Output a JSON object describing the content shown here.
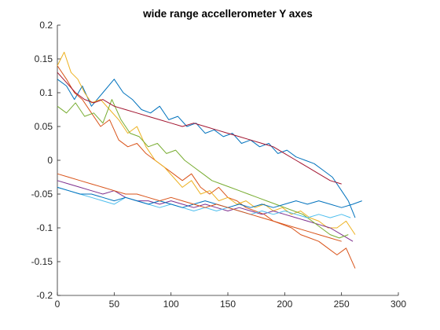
{
  "chart_data": {
    "type": "line",
    "title": "wide range accellerometer Y axes",
    "xlabel": "",
    "ylabel": "",
    "xlim": [
      0,
      300
    ],
    "ylim": [
      -0.2,
      0.2
    ],
    "xticks": [
      0,
      50,
      100,
      150,
      200,
      250,
      300
    ],
    "yticks": [
      -0.2,
      -0.15,
      -0.1,
      -0.05,
      0,
      0.05,
      0.1,
      0.15,
      0.2
    ],
    "grid": false,
    "legend": "none",
    "series": [
      {
        "color": "#0072BD",
        "points": [
          [
            0,
            0.12
          ],
          [
            8,
            0.11
          ],
          [
            15,
            0.09
          ],
          [
            22,
            0.11
          ],
          [
            30,
            0.08
          ],
          [
            40,
            0.1
          ],
          [
            50,
            0.12
          ],
          [
            58,
            0.1
          ],
          [
            66,
            0.09
          ],
          [
            74,
            0.075
          ],
          [
            82,
            0.07
          ],
          [
            90,
            0.08
          ],
          [
            98,
            0.06
          ],
          [
            106,
            0.065
          ],
          [
            114,
            0.05
          ],
          [
            122,
            0.055
          ],
          [
            130,
            0.04
          ],
          [
            138,
            0.045
          ],
          [
            146,
            0.035
          ],
          [
            154,
            0.04
          ],
          [
            162,
            0.025
          ],
          [
            170,
            0.03
          ],
          [
            178,
            0.02
          ],
          [
            186,
            0.025
          ],
          [
            194,
            0.01
          ],
          [
            202,
            0.015
          ],
          [
            210,
            0.005
          ],
          [
            218,
            0.0
          ],
          [
            226,
            -0.005
          ],
          [
            234,
            -0.015
          ],
          [
            242,
            -0.025
          ],
          [
            250,
            -0.045
          ],
          [
            256,
            -0.06
          ],
          [
            262,
            -0.085
          ]
        ]
      },
      {
        "color": "#D95319",
        "points": [
          [
            0,
            0.14
          ],
          [
            8,
            0.12
          ],
          [
            15,
            0.1
          ],
          [
            22,
            0.09
          ],
          [
            30,
            0.07
          ],
          [
            38,
            0.05
          ],
          [
            46,
            0.06
          ],
          [
            54,
            0.03
          ],
          [
            62,
            0.02
          ],
          [
            70,
            0.025
          ],
          [
            78,
            0.01
          ],
          [
            86,
            0.0
          ],
          [
            94,
            -0.01
          ],
          [
            102,
            -0.02
          ],
          [
            110,
            -0.03
          ],
          [
            118,
            -0.02
          ],
          [
            126,
            -0.04
          ],
          [
            134,
            -0.05
          ],
          [
            142,
            -0.04
          ],
          [
            150,
            -0.055
          ],
          [
            158,
            -0.06
          ],
          [
            166,
            -0.07
          ],
          [
            174,
            -0.075
          ],
          [
            182,
            -0.08
          ],
          [
            190,
            -0.09
          ],
          [
            198,
            -0.095
          ],
          [
            206,
            -0.1
          ],
          [
            214,
            -0.11
          ],
          [
            222,
            -0.115
          ],
          [
            230,
            -0.12
          ],
          [
            238,
            -0.13
          ],
          [
            246,
            -0.14
          ],
          [
            254,
            -0.13
          ],
          [
            262,
            -0.16
          ]
        ]
      },
      {
        "color": "#EDB120",
        "points": [
          [
            0,
            0.14
          ],
          [
            6,
            0.16
          ],
          [
            12,
            0.13
          ],
          [
            18,
            0.12
          ],
          [
            24,
            0.1
          ],
          [
            30,
            0.085
          ],
          [
            38,
            0.09
          ],
          [
            46,
            0.075
          ],
          [
            54,
            0.06
          ],
          [
            62,
            0.04
          ],
          [
            70,
            0.05
          ],
          [
            78,
            0.02
          ],
          [
            86,
            0.0
          ],
          [
            94,
            -0.01
          ],
          [
            102,
            -0.025
          ],
          [
            110,
            -0.04
          ],
          [
            118,
            -0.03
          ],
          [
            126,
            -0.05
          ],
          [
            134,
            -0.045
          ],
          [
            142,
            -0.06
          ],
          [
            150,
            -0.055
          ],
          [
            158,
            -0.065
          ],
          [
            166,
            -0.06
          ],
          [
            174,
            -0.07
          ],
          [
            182,
            -0.065
          ],
          [
            190,
            -0.075
          ],
          [
            198,
            -0.07
          ],
          [
            206,
            -0.08
          ],
          [
            214,
            -0.075
          ],
          [
            222,
            -0.085
          ],
          [
            230,
            -0.09
          ],
          [
            238,
            -0.1
          ],
          [
            246,
            -0.1
          ],
          [
            254,
            -0.09
          ],
          [
            262,
            -0.11
          ]
        ]
      },
      {
        "color": "#7E2F8E",
        "points": [
          [
            0,
            -0.03
          ],
          [
            10,
            -0.035
          ],
          [
            20,
            -0.04
          ],
          [
            30,
            -0.045
          ],
          [
            40,
            -0.05
          ],
          [
            50,
            -0.045
          ],
          [
            60,
            -0.055
          ],
          [
            70,
            -0.06
          ],
          [
            80,
            -0.06
          ],
          [
            90,
            -0.065
          ],
          [
            100,
            -0.06
          ],
          [
            110,
            -0.065
          ],
          [
            120,
            -0.07
          ],
          [
            130,
            -0.065
          ],
          [
            140,
            -0.07
          ],
          [
            150,
            -0.075
          ],
          [
            160,
            -0.07
          ],
          [
            170,
            -0.075
          ],
          [
            180,
            -0.08
          ],
          [
            190,
            -0.075
          ],
          [
            200,
            -0.08
          ],
          [
            210,
            -0.085
          ],
          [
            220,
            -0.09
          ],
          [
            230,
            -0.095
          ],
          [
            240,
            -0.1
          ],
          [
            250,
            -0.11
          ],
          [
            260,
            -0.12
          ]
        ]
      },
      {
        "color": "#77AC30",
        "points": [
          [
            0,
            0.08
          ],
          [
            8,
            0.07
          ],
          [
            16,
            0.085
          ],
          [
            24,
            0.065
          ],
          [
            32,
            0.07
          ],
          [
            40,
            0.055
          ],
          [
            48,
            0.09
          ],
          [
            56,
            0.06
          ],
          [
            64,
            0.04
          ],
          [
            72,
            0.035
          ],
          [
            80,
            0.02
          ],
          [
            88,
            0.025
          ],
          [
            96,
            0.01
          ],
          [
            104,
            0.015
          ],
          [
            112,
            0.0
          ],
          [
            120,
            -0.01
          ],
          [
            128,
            -0.02
          ],
          [
            136,
            -0.03
          ],
          [
            144,
            -0.035
          ],
          [
            152,
            -0.04
          ],
          [
            160,
            -0.045
          ],
          [
            168,
            -0.05
          ],
          [
            176,
            -0.055
          ],
          [
            184,
            -0.06
          ],
          [
            192,
            -0.065
          ],
          [
            200,
            -0.07
          ],
          [
            208,
            -0.075
          ],
          [
            216,
            -0.08
          ],
          [
            224,
            -0.09
          ],
          [
            232,
            -0.1
          ],
          [
            240,
            -0.11
          ],
          [
            248,
            -0.115
          ],
          [
            256,
            -0.11
          ]
        ]
      },
      {
        "color": "#4DBEEE",
        "points": [
          [
            0,
            -0.04
          ],
          [
            10,
            -0.045
          ],
          [
            20,
            -0.05
          ],
          [
            30,
            -0.055
          ],
          [
            40,
            -0.06
          ],
          [
            50,
            -0.065
          ],
          [
            60,
            -0.055
          ],
          [
            70,
            -0.06
          ],
          [
            80,
            -0.065
          ],
          [
            90,
            -0.07
          ],
          [
            100,
            -0.065
          ],
          [
            110,
            -0.07
          ],
          [
            120,
            -0.075
          ],
          [
            130,
            -0.07
          ],
          [
            140,
            -0.075
          ],
          [
            150,
            -0.07
          ],
          [
            160,
            -0.075
          ],
          [
            170,
            -0.08
          ],
          [
            180,
            -0.075
          ],
          [
            190,
            -0.08
          ],
          [
            200,
            -0.075
          ],
          [
            210,
            -0.08
          ],
          [
            220,
            -0.085
          ],
          [
            230,
            -0.08
          ],
          [
            240,
            -0.085
          ],
          [
            250,
            -0.08
          ],
          [
            258,
            -0.085
          ]
        ]
      },
      {
        "color": "#A2142F",
        "points": [
          [
            0,
            0.13
          ],
          [
            8,
            0.115
          ],
          [
            16,
            0.1
          ],
          [
            24,
            0.09
          ],
          [
            32,
            0.085
          ],
          [
            40,
            0.09
          ],
          [
            50,
            0.08
          ],
          [
            60,
            0.075
          ],
          [
            70,
            0.07
          ],
          [
            80,
            0.065
          ],
          [
            90,
            0.06
          ],
          [
            100,
            0.055
          ],
          [
            110,
            0.05
          ],
          [
            120,
            0.055
          ],
          [
            130,
            0.05
          ],
          [
            140,
            0.045
          ],
          [
            150,
            0.04
          ],
          [
            160,
            0.035
          ],
          [
            170,
            0.03
          ],
          [
            180,
            0.025
          ],
          [
            190,
            0.02
          ],
          [
            200,
            0.01
          ],
          [
            210,
            0.0
          ],
          [
            220,
            -0.01
          ],
          [
            230,
            -0.02
          ],
          [
            240,
            -0.03
          ],
          [
            250,
            -0.035
          ]
        ]
      },
      {
        "color": "#0072BD",
        "points": [
          [
            0,
            -0.04
          ],
          [
            10,
            -0.045
          ],
          [
            20,
            -0.05
          ],
          [
            30,
            -0.05
          ],
          [
            40,
            -0.055
          ],
          [
            50,
            -0.06
          ],
          [
            60,
            -0.055
          ],
          [
            70,
            -0.06
          ],
          [
            80,
            -0.065
          ],
          [
            90,
            -0.06
          ],
          [
            100,
            -0.065
          ],
          [
            110,
            -0.07
          ],
          [
            120,
            -0.065
          ],
          [
            130,
            -0.06
          ],
          [
            140,
            -0.065
          ],
          [
            150,
            -0.07
          ],
          [
            160,
            -0.065
          ],
          [
            170,
            -0.07
          ],
          [
            180,
            -0.065
          ],
          [
            190,
            -0.07
          ],
          [
            200,
            -0.065
          ],
          [
            210,
            -0.06
          ],
          [
            220,
            -0.065
          ],
          [
            230,
            -0.06
          ],
          [
            240,
            -0.065
          ],
          [
            250,
            -0.07
          ],
          [
            260,
            -0.065
          ],
          [
            268,
            -0.06
          ]
        ]
      },
      {
        "color": "#D95319",
        "points": [
          [
            0,
            -0.02
          ],
          [
            10,
            -0.025
          ],
          [
            20,
            -0.03
          ],
          [
            30,
            -0.035
          ],
          [
            40,
            -0.04
          ],
          [
            50,
            -0.045
          ],
          [
            60,
            -0.05
          ],
          [
            70,
            -0.05
          ],
          [
            80,
            -0.055
          ],
          [
            90,
            -0.06
          ],
          [
            100,
            -0.055
          ],
          [
            110,
            -0.06
          ],
          [
            120,
            -0.065
          ],
          [
            130,
            -0.07
          ],
          [
            140,
            -0.065
          ],
          [
            150,
            -0.07
          ],
          [
            160,
            -0.075
          ],
          [
            170,
            -0.08
          ],
          [
            180,
            -0.085
          ],
          [
            190,
            -0.09
          ],
          [
            200,
            -0.095
          ],
          [
            210,
            -0.1
          ],
          [
            220,
            -0.105
          ],
          [
            230,
            -0.11
          ],
          [
            240,
            -0.115
          ],
          [
            250,
            -0.12
          ]
        ]
      }
    ]
  }
}
